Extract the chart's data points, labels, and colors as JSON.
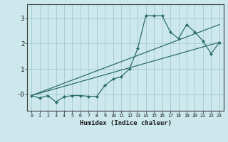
{
  "xlabel": "Humidex (Indice chaleur)",
  "background_color": "#cde8ec",
  "grid_color": "#a8cdd4",
  "line_color": "#2a6e68",
  "xlim": [
    -0.5,
    23.5
  ],
  "ylim": [
    -0.65,
    3.55
  ],
  "yticks": [
    0,
    1,
    2,
    3
  ],
  "ytick_labels": [
    "-0",
    "1",
    "2",
    "3"
  ],
  "xticks": [
    0,
    1,
    2,
    3,
    4,
    5,
    6,
    7,
    8,
    9,
    10,
    11,
    12,
    13,
    14,
    15,
    16,
    17,
    18,
    19,
    20,
    21,
    22,
    23
  ],
  "series": [
    [
      0,
      -0.05
    ],
    [
      1,
      -0.15
    ],
    [
      2,
      -0.05
    ],
    [
      3,
      -0.3
    ],
    [
      4,
      -0.1
    ],
    [
      5,
      -0.05
    ],
    [
      6,
      -0.05
    ],
    [
      7,
      -0.08
    ],
    [
      8,
      -0.08
    ],
    [
      9,
      0.35
    ],
    [
      10,
      0.6
    ],
    [
      11,
      0.7
    ],
    [
      12,
      1.0
    ],
    [
      13,
      1.8
    ],
    [
      14,
      3.1
    ],
    [
      15,
      3.1
    ],
    [
      16,
      3.1
    ],
    [
      17,
      2.45
    ],
    [
      18,
      2.2
    ],
    [
      19,
      2.75
    ],
    [
      20,
      2.45
    ],
    [
      21,
      2.1
    ],
    [
      22,
      1.6
    ],
    [
      23,
      2.05
    ]
  ],
  "line2": [
    [
      0,
      -0.05
    ],
    [
      23,
      2.75
    ]
  ],
  "line3": [
    [
      0,
      -0.05
    ],
    [
      23,
      2.05
    ]
  ]
}
